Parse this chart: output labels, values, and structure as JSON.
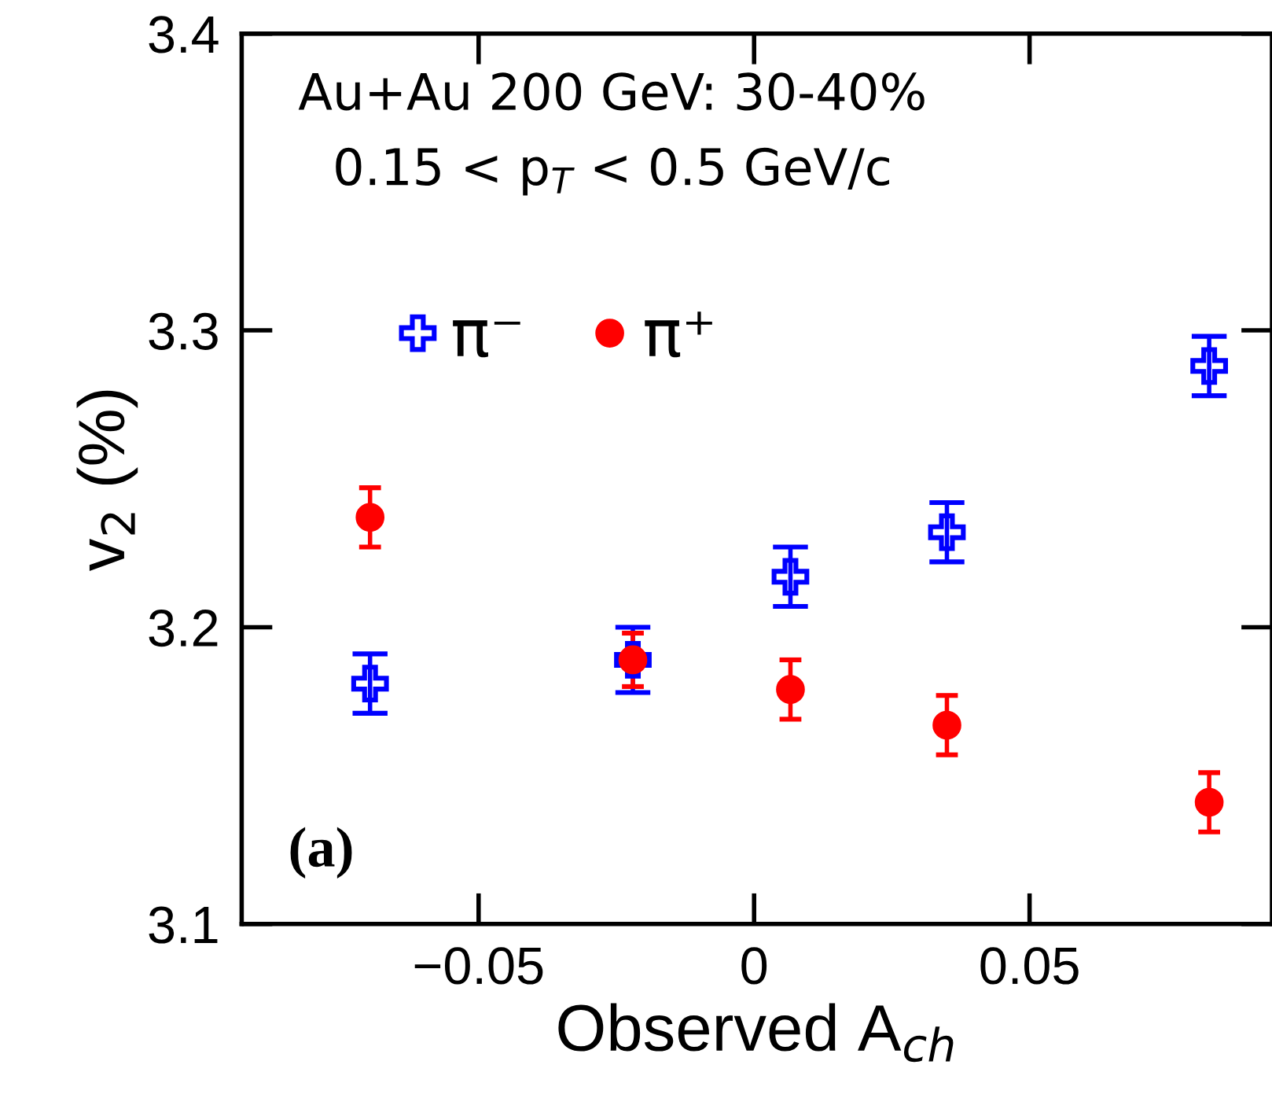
{
  "chart_data": {
    "type": "scatter",
    "xlabel": "Observed A$_{ch}$",
    "ylabel": "v$_{2}$ (%)",
    "annotations": [
      "Au+Au 200 GeV: 30-40%",
      "0.15 < p$_{T}$ < 0.5 GeV/c",
      "(a)"
    ],
    "xlim": [
      -0.093,
      0.094
    ],
    "ylim": [
      3.1,
      3.4
    ],
    "xticks": [
      {
        "value": -0.05,
        "label": "−0.05"
      },
      0,
      0.05
    ],
    "yticks": [
      3.1,
      3.2,
      3.3,
      3.4
    ],
    "legend": "top",
    "grid": false,
    "series": [
      {
        "name": "π⁻",
        "color": "#0000ff",
        "marker": "cross",
        "x": [
          -0.0697,
          -0.022,
          0.0066,
          0.035,
          0.0826
        ],
        "values": [
          3.181,
          3.189,
          3.217,
          3.232,
          3.288
        ],
        "errors": [
          0.01,
          0.011,
          0.01,
          0.01,
          0.01
        ]
      },
      {
        "name": "π⁺",
        "color": "#ff0000",
        "marker": "circle",
        "x": [
          -0.0697,
          -0.022,
          0.0066,
          0.035,
          0.0826
        ],
        "values": [
          3.237,
          3.189,
          3.179,
          3.167,
          3.141
        ],
        "errors": [
          0.01,
          0.009,
          0.01,
          0.01,
          0.01
        ]
      }
    ]
  }
}
